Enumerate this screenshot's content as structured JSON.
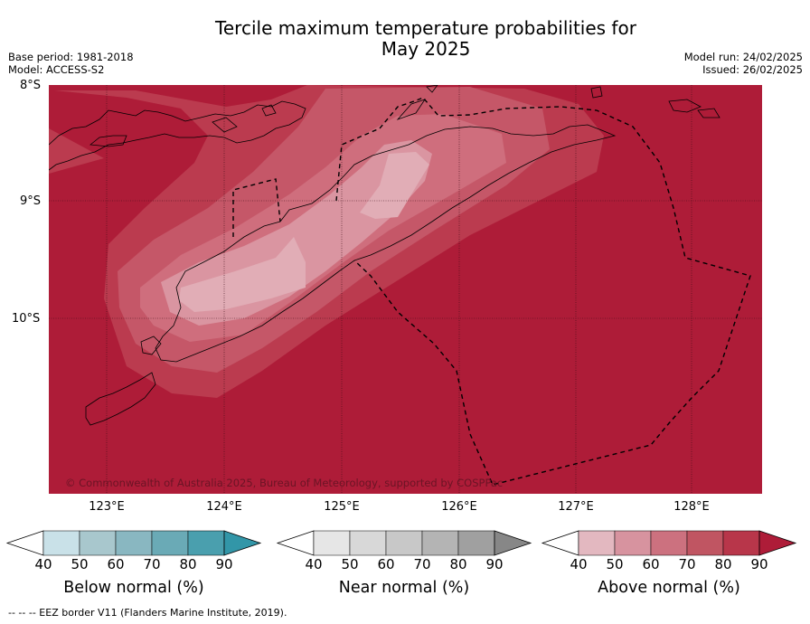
{
  "title_line1": "Tercile maximum temperature probabilities for",
  "title_line2": "May 2025",
  "meta_left": [
    "Base period: 1981-2018",
    "Model: ACCESS-S2"
  ],
  "meta_right": [
    "Model run: 24/02/2025",
    "Issued: 26/02/2025"
  ],
  "lat_labels": [
    "8°S",
    "9°S",
    "10°S"
  ],
  "lon_labels": [
    "123°E",
    "124°E",
    "125°E",
    "126°E",
    "127°E",
    "128°E"
  ],
  "copyright": "© Commonwealth of Australia 2025, Bureau of Meteorology, supported by COSPPac",
  "legends": [
    {
      "title": "Below normal (%)",
      "colors": [
        "#c9e1e8",
        "#a8c7cd",
        "#89b7c1",
        "#6aaab6",
        "#4a9fae",
        "#3296a8"
      ]
    },
    {
      "title": "Near normal (%)",
      "colors": [
        "#e6e6e6",
        "#d8d8d8",
        "#c8c8c8",
        "#b4b4b4",
        "#a0a0a0",
        "#878787"
      ]
    },
    {
      "title": "Above normal (%)",
      "colors": [
        "#e3b8c0",
        "#d7939f",
        "#cc717f",
        "#c05562",
        "#b8364a",
        "#ae1c38"
      ]
    }
  ],
  "legend_ticks": [
    "40",
    "50",
    "60",
    "70",
    "80",
    "90"
  ],
  "footnote": "--  --  -- EEZ border V11 (Flanders Marine Institute, 2019)."
}
